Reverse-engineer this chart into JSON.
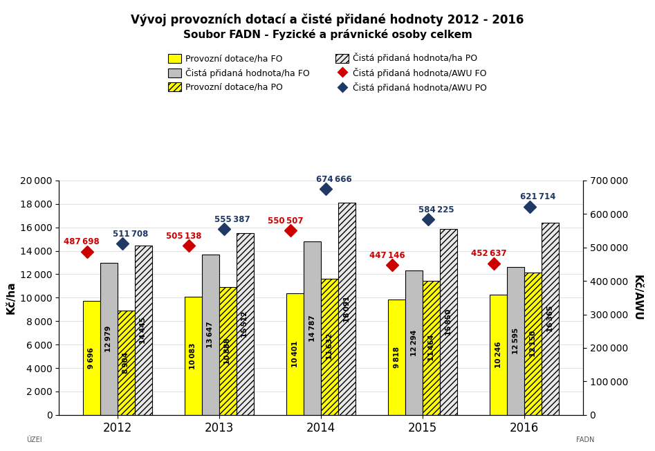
{
  "title1": "Vývoj provozních dotací a čisté přidané hodnoty 2012 - 2016",
  "title2": "Soubor FADN - Fyzické a právnické osoby celkem",
  "years": [
    2012,
    2013,
    2014,
    2015,
    2016
  ],
  "dotace_FO": [
    9696,
    10083,
    10401,
    9818,
    10246
  ],
  "cph_FO": [
    12979,
    13647,
    14787,
    12294,
    12595
  ],
  "dotace_PO": [
    8904,
    10888,
    11632,
    11464,
    12150
  ],
  "cph_PO": [
    14445,
    15512,
    18091,
    15850,
    16365
  ],
  "awu_FO": [
    487698,
    505138,
    550507,
    447146,
    452637
  ],
  "awu_PO": [
    511708,
    555387,
    674666,
    584225,
    621714
  ],
  "bar_width": 0.17,
  "ylim_left": [
    0,
    20000
  ],
  "ylim_right": [
    0,
    700000
  ],
  "yticks_left": [
    0,
    2000,
    4000,
    6000,
    8000,
    10000,
    12000,
    14000,
    16000,
    18000,
    20000
  ],
  "yticks_right": [
    0,
    100000,
    200000,
    300000,
    400000,
    500000,
    600000,
    700000
  ],
  "color_yellow": "#FFFF00",
  "color_gray": "#BFBFBF",
  "color_red": "#CC0000",
  "color_blue": "#1F3864",
  "legend_labels": [
    "Provozní dotace/ha FO",
    "Čistá přidaná hodnota/ha FO",
    "Provozní dotace/ha PO",
    "Čistá přidaná hodnota/ha PO",
    "Čistá přidaná hodnota/AWU FO",
    "Čistá přidaná hodnota/AWU PO"
  ],
  "ylabel_left": "Kč/ha",
  "ylabel_right": "Kč/AWU",
  "awu_fo_offsets": [
    -0.25,
    -0.25,
    -0.25,
    -0.25,
    -0.25
  ],
  "awu_po_offsets": [
    0.0,
    0.0,
    0.0,
    0.0,
    0.0
  ]
}
